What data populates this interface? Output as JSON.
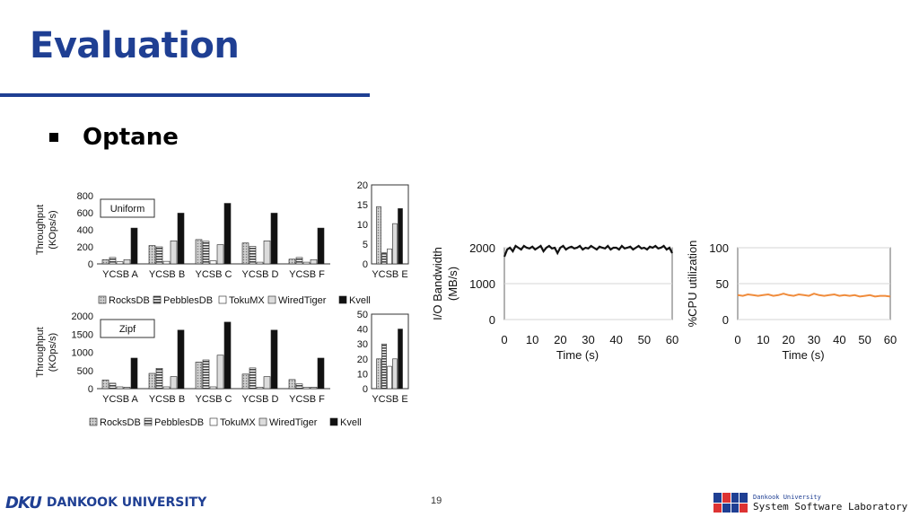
{
  "slide": {
    "title": "Evaluation",
    "section": "Optane",
    "page_number": "19",
    "footer_left": "DANKOOK UNIVERSITY",
    "footer_left_mark": "DKU",
    "footer_right_small": "Dankook University",
    "footer_right": "System Software Laboratory"
  },
  "colors": {
    "title": "#1f3f93",
    "cpu_line": "#f08c3c",
    "io_line": "#111111"
  },
  "chart_data": [
    {
      "type": "bar",
      "label_box": "Uniform",
      "ylabel": "Throughput\n(KOps/s)",
      "categories": [
        "YCSB A",
        "YCSB B",
        "YCSB C",
        "YCSB D",
        "YCSB F"
      ],
      "ylim": [
        0,
        800
      ],
      "yticks": [
        "800",
        "600",
        "400",
        "200",
        "0"
      ],
      "series": [
        {
          "name": "RocksDB",
          "values": [
            50,
            215,
            285,
            245,
            55
          ]
        },
        {
          "name": "PebblesDB",
          "values": [
            75,
            200,
            265,
            205,
            75
          ]
        },
        {
          "name": "TokuMX",
          "values": [
            25,
            30,
            35,
            20,
            20
          ]
        },
        {
          "name": "WiredTiger",
          "values": [
            50,
            270,
            225,
            270,
            50
          ]
        },
        {
          "name": "Kvell",
          "values": [
            420,
            595,
            710,
            595,
            420
          ]
        }
      ],
      "legend_position": "bottom"
    },
    {
      "type": "bar",
      "categories": [
        "YCSB E"
      ],
      "ylim": [
        0,
        20
      ],
      "yticks": [
        "20",
        "15",
        "10",
        "5",
        "0"
      ],
      "series": [
        {
          "name": "RocksDB",
          "values": [
            14.5
          ]
        },
        {
          "name": "PebblesDB",
          "values": [
            2.8
          ]
        },
        {
          "name": "TokuMX",
          "values": [
            3.8
          ]
        },
        {
          "name": "WiredTiger",
          "values": [
            10.2
          ]
        },
        {
          "name": "Kvell",
          "values": [
            14
          ]
        }
      ]
    },
    {
      "type": "bar",
      "label_box": "Zipf",
      "ylabel": "Throughput\n(KOps/s)",
      "categories": [
        "YCSB A",
        "YCSB B",
        "YCSB C",
        "YCSB D",
        "YCSB F"
      ],
      "ylim": [
        0,
        2000
      ],
      "yticks": [
        "2000",
        "1500",
        "1000",
        "500",
        "0"
      ],
      "series": [
        {
          "name": "RocksDB",
          "values": [
            240,
            420,
            730,
            400,
            250
          ]
        },
        {
          "name": "PebblesDB",
          "values": [
            150,
            560,
            790,
            570,
            130
          ]
        },
        {
          "name": "TokuMX",
          "values": [
            50,
            50,
            50,
            40,
            40
          ]
        },
        {
          "name": "WiredTiger",
          "values": [
            40,
            330,
            920,
            330,
            40
          ]
        },
        {
          "name": "Kvell",
          "values": [
            840,
            1610,
            1830,
            1610,
            840
          ]
        }
      ],
      "legend_position": "bottom"
    },
    {
      "type": "bar",
      "categories": [
        "YCSB E"
      ],
      "ylim": [
        0,
        50
      ],
      "yticks": [
        "50",
        "40",
        "30",
        "20",
        "10",
        "0"
      ],
      "series": [
        {
          "name": "RocksDB",
          "values": [
            20
          ]
        },
        {
          "name": "PebblesDB",
          "values": [
            30
          ]
        },
        {
          "name": "TokuMX",
          "values": [
            15
          ]
        },
        {
          "name": "WiredTiger",
          "values": [
            20
          ]
        },
        {
          "name": "Kvell",
          "values": [
            40
          ]
        }
      ]
    },
    {
      "type": "line",
      "xlabel": "Time (s)",
      "ylabel": "I/O Bandwidth\n(MB/s)",
      "xlim": [
        0,
        60
      ],
      "ylim": [
        0,
        2000
      ],
      "xticks": [
        "0",
        "10",
        "20",
        "30",
        "40",
        "50",
        "60"
      ],
      "yticks": [
        "2000",
        "1000",
        "0"
      ],
      "series": [
        {
          "x": [
            0,
            1,
            2,
            3,
            4,
            5,
            6,
            7,
            8,
            9,
            10,
            11,
            12,
            13,
            14,
            15,
            16,
            17,
            18,
            19,
            20,
            21,
            22,
            23,
            24,
            25,
            26,
            27,
            28,
            29,
            30,
            31,
            32,
            33,
            34,
            35,
            36,
            37,
            38,
            39,
            40,
            41,
            42,
            43,
            44,
            45,
            46,
            47,
            48,
            49,
            50,
            51,
            52,
            53,
            54,
            55,
            56,
            57,
            58,
            59,
            60
          ],
          "y": [
            1750,
            1950,
            2000,
            1900,
            2050,
            2000,
            1950,
            2050,
            2000,
            1980,
            2030,
            1950,
            2000,
            2050,
            1900,
            2000,
            2050,
            1980,
            2000,
            1850,
            2000,
            2050,
            1950,
            2000,
            2030,
            1980,
            2000,
            2050,
            1950,
            2000,
            1980,
            2050,
            2000,
            1950,
            2030,
            2000,
            1980,
            2050,
            1950,
            2000,
            2000,
            1950,
            2050,
            1980,
            2000,
            2030,
            1950,
            2000,
            2050,
            1980,
            2000,
            1950,
            2030,
            2000,
            2050,
            1980,
            2000,
            2050,
            1950,
            2000,
            1850
          ]
        }
      ]
    },
    {
      "type": "line",
      "xlabel": "Time (s)",
      "ylabel": "%CPU utilization",
      "xlim": [
        0,
        60
      ],
      "ylim": [
        0,
        100
      ],
      "xticks": [
        "0",
        "10",
        "20",
        "30",
        "40",
        "50",
        "60"
      ],
      "yticks": [
        "100",
        "50",
        "0"
      ],
      "series": [
        {
          "x": [
            0,
            2,
            4,
            6,
            8,
            10,
            12,
            14,
            16,
            18,
            20,
            22,
            24,
            26,
            28,
            30,
            32,
            34,
            36,
            38,
            40,
            42,
            44,
            46,
            48,
            50,
            52,
            54,
            56,
            58,
            60
          ],
          "y": [
            34,
            33,
            35,
            34,
            33,
            34,
            35,
            33,
            34,
            36,
            34,
            33,
            35,
            34,
            33,
            36,
            34,
            33,
            34,
            35,
            33,
            34,
            33,
            34,
            32,
            33,
            34,
            32,
            33,
            33,
            32
          ]
        }
      ]
    }
  ]
}
